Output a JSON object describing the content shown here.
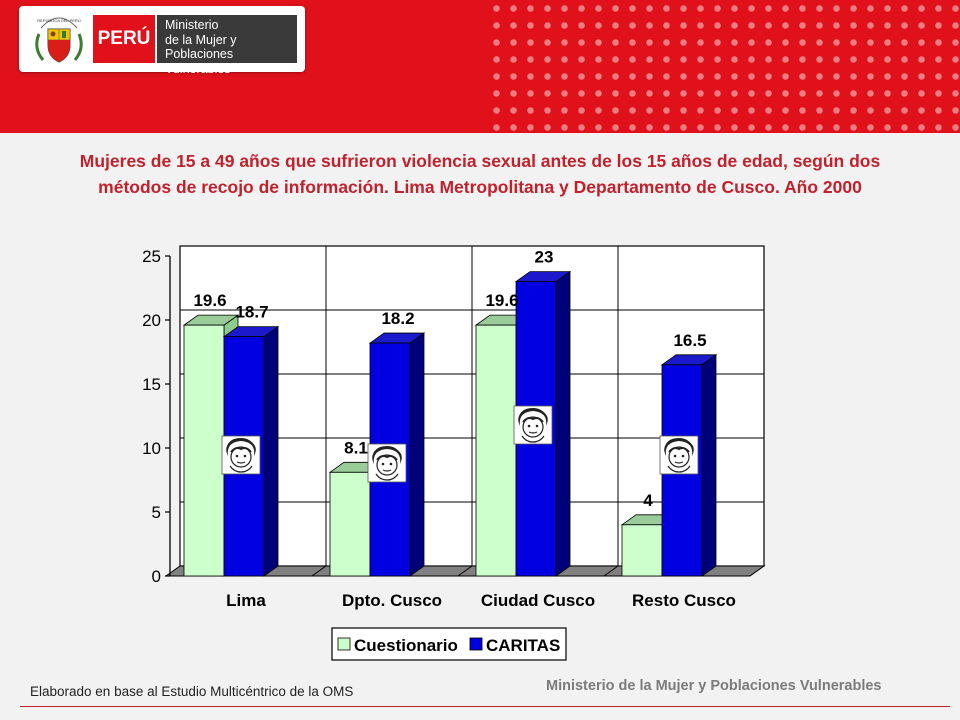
{
  "header": {
    "crest_text": "REPÚBLICA DEL PERÚ",
    "country": "PERÚ",
    "ministry_lines": [
      "Ministerio",
      "de la Mujer y",
      "Poblaciones Vulnerables"
    ]
  },
  "footer": {
    "source": "Elaborado en base al Estudio Multicéntrico de la OMS",
    "ministry": "Ministerio de la Mujer y Poblaciones Vulnerables"
  },
  "chart_data": {
    "type": "bar",
    "title": "Mujeres de 15 a 49 años que sufrieron violencia sexual antes de los 15 años de edad, según dos métodos de recojo de información. Lima Metropolitana y Departamento de Cusco. Año 2000",
    "categories": [
      "Lima",
      "Dpto. Cusco",
      "Ciudad Cusco",
      "Resto Cusco"
    ],
    "series": [
      {
        "name": "Cuestionario",
        "values": [
          19.6,
          8.1,
          19.6,
          4
        ],
        "color": "#ccffcc"
      },
      {
        "name": "CARITAS",
        "values": [
          18.7,
          18.2,
          23,
          16.5
        ],
        "color": "#0000e0"
      }
    ],
    "y_ticks": [
      0,
      5,
      10,
      15,
      20,
      25
    ],
    "ylim": [
      0,
      25
    ],
    "grid": true,
    "legend_position": "bottom",
    "colors": {
      "floor": "#808080",
      "plot_border": "#000000",
      "blue_side": "#00007a",
      "blue_top": "#1a1acc",
      "green_side": "#8ccc8c",
      "green_top": "#99cc99"
    }
  }
}
